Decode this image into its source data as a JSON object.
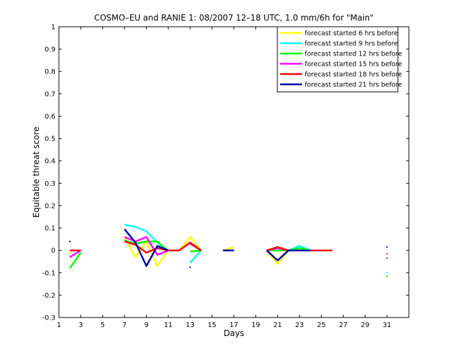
{
  "chart_data": {
    "type": "line",
    "title": "COSMO–EU and RANIE 1: 08/2007 12–18 UTC, 1.0 mm/6h for \"Main\"",
    "xlabel": "Days",
    "ylabel": "Equitable threat score",
    "xlim": [
      1,
      33
    ],
    "ylim": [
      -0.3,
      1
    ],
    "xticks": [
      "1",
      "3",
      "5",
      "7",
      "9",
      "11",
      "13",
      "15",
      "17",
      "19",
      "21",
      "23",
      "25",
      "27",
      "29",
      "31"
    ],
    "yticks": [
      "-0.3",
      "-0.2",
      "-0.1",
      "0",
      "0.1",
      "0.2",
      "0.3",
      "0.4",
      "0.5",
      "0.6",
      "0.7",
      "0.8",
      "0.9",
      "1"
    ],
    "grid": false,
    "legend_position": "top-right",
    "series": [
      {
        "name": "forecast started 6 hrs before",
        "color": "#ffff00",
        "segments": [
          [
            [
              7,
              0.06
            ],
            [
              8,
              -0.03
            ],
            [
              9,
              0.04
            ],
            [
              10,
              -0.07
            ],
            [
              11,
              0.0
            ],
            [
              12,
              0.0
            ],
            [
              13,
              0.06
            ],
            [
              14,
              0.0
            ]
          ],
          [
            [
              16,
              0.0
            ],
            [
              17,
              0.015
            ]
          ],
          [
            [
              20,
              0.0
            ],
            [
              21,
              -0.06
            ],
            [
              22,
              0.0
            ],
            [
              23,
              0.02
            ],
            [
              24,
              0.0
            ],
            [
              25,
              0.0
            ],
            [
              26,
              0.0
            ]
          ]
        ],
        "points": [
          [
            2,
            -0.01
          ],
          [
            31,
            -0.12
          ]
        ]
      },
      {
        "name": "forecast started 9 hrs before",
        "color": "#00ffff",
        "segments": [
          [
            [
              2,
              -0.03
            ],
            [
              3,
              0.0
            ]
          ],
          [
            [
              7,
              0.115
            ],
            [
              8,
              0.105
            ],
            [
              9,
              0.085
            ],
            [
              10,
              0.035
            ],
            [
              11,
              0.0
            ]
          ],
          [
            [
              13,
              -0.055
            ],
            [
              14,
              0.0
            ]
          ],
          [
            [
              16,
              0.0
            ],
            [
              17,
              0.0
            ]
          ],
          [
            [
              20,
              0.0
            ],
            [
              21,
              0.0
            ],
            [
              22,
              0.0
            ],
            [
              23,
              0.02
            ],
            [
              24,
              0.0
            ],
            [
              25,
              0.0
            ],
            [
              26,
              0.0
            ]
          ]
        ],
        "points": [
          [
            31,
            -0.1
          ]
        ]
      },
      {
        "name": "forecast started 12 hrs before",
        "color": "#00ff00",
        "segments": [
          [
            [
              2,
              -0.08
            ],
            [
              3,
              -0.01
            ]
          ],
          [
            [
              7,
              0.045
            ],
            [
              8,
              0.03
            ],
            [
              9,
              0.04
            ],
            [
              10,
              0.04
            ],
            [
              11,
              -0.005
            ]
          ],
          [
            [
              13,
              -0.005
            ],
            [
              14,
              0.0
            ]
          ],
          [
            [
              20,
              0.0
            ],
            [
              21,
              0.0
            ],
            [
              22,
              0.0
            ],
            [
              23,
              0.01
            ],
            [
              24,
              0.0
            ],
            [
              25,
              0.0
            ],
            [
              26,
              0.0
            ]
          ]
        ],
        "points": [
          [
            31,
            -0.115
          ]
        ]
      },
      {
        "name": "forecast started 15 hrs before",
        "color": "#ff00ff",
        "segments": [
          [
            [
              2,
              -0.03
            ],
            [
              3,
              0.0
            ]
          ],
          [
            [
              7,
              0.06
            ],
            [
              8,
              0.04
            ],
            [
              9,
              0.06
            ],
            [
              10,
              -0.02
            ],
            [
              11,
              0.0
            ]
          ],
          [
            [
              13,
              0.03
            ],
            [
              14,
              0.0
            ]
          ],
          [
            [
              20,
              0.0
            ],
            [
              21,
              0.01
            ],
            [
              22,
              0.0
            ],
            [
              23,
              0.0
            ],
            [
              24,
              0.0
            ],
            [
              25,
              0.0
            ],
            [
              26,
              0.0
            ]
          ]
        ],
        "points": [
          [
            31,
            -0.015
          ]
        ]
      },
      {
        "name": "forecast started 18 hrs before",
        "color": "#ff0000",
        "segments": [
          [
            [
              2,
              0.0
            ],
            [
              3,
              0.0
            ]
          ],
          [
            [
              7,
              0.04
            ],
            [
              8,
              0.025
            ],
            [
              9,
              -0.01
            ],
            [
              10,
              0.01
            ],
            [
              11,
              0.0
            ],
            [
              12,
              0.0
            ],
            [
              13,
              0.035
            ],
            [
              14,
              0.0
            ]
          ],
          [
            [
              20,
              0.0
            ],
            [
              21,
              0.015
            ],
            [
              22,
              0.0
            ],
            [
              23,
              0.0
            ],
            [
              24,
              0.0
            ],
            [
              25,
              0.0
            ],
            [
              26,
              0.0
            ]
          ]
        ],
        "points": [
          [
            31,
            -0.035
          ]
        ]
      },
      {
        "name": "forecast started 21 hrs before",
        "color": "#0000aa",
        "segments": [
          [
            [
              7,
              0.095
            ],
            [
              8,
              0.035
            ],
            [
              9,
              -0.07
            ],
            [
              10,
              0.02
            ],
            [
              11,
              0.0
            ]
          ],
          [
            [
              16,
              0.0
            ],
            [
              17,
              0.0
            ]
          ],
          [
            [
              20,
              0.0
            ],
            [
              21,
              -0.045
            ],
            [
              22,
              0.0
            ],
            [
              23,
              0.0
            ],
            [
              24,
              0.0
            ]
          ]
        ],
        "points": [
          [
            2,
            0.04
          ],
          [
            13,
            -0.075
          ],
          [
            31,
            0.015
          ]
        ]
      }
    ]
  }
}
